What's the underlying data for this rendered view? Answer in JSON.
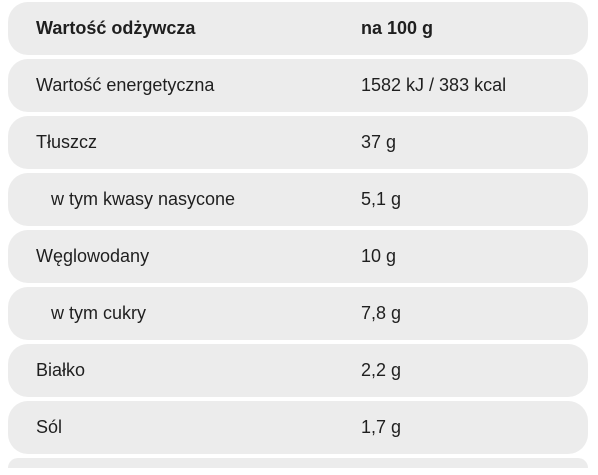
{
  "header": {
    "name": "Wartość odżywcza",
    "value": "na 100 g"
  },
  "rows": [
    {
      "name": "Wartość energetyczna",
      "value": "1582 kJ / 383 kcal"
    },
    {
      "name": "Tłuszcz",
      "value": "37 g"
    },
    {
      "name": "w tym kwasy nasycone",
      "value": "5,1 g"
    },
    {
      "name": "Węglowodany",
      "value": "10 g"
    },
    {
      "name": "w tym cukry",
      "value": "7,8 g"
    },
    {
      "name": "Białko",
      "value": "2,2 g"
    },
    {
      "name": "Sól",
      "value": "1,7 g"
    }
  ]
}
